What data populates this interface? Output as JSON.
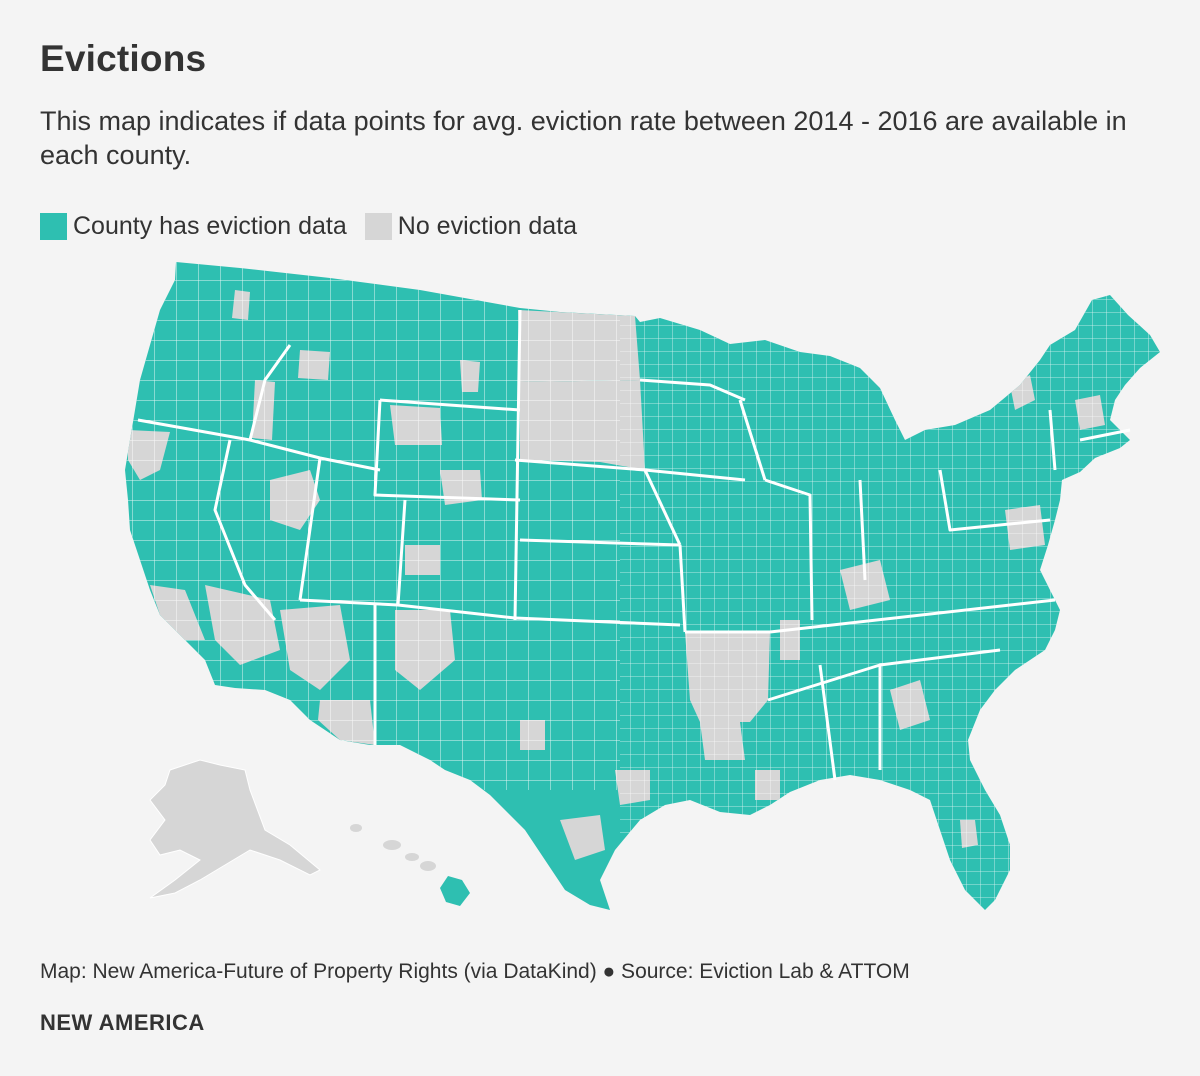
{
  "header": {
    "title": "Evictions",
    "subtitle": "This map indicates if data points for avg. eviction rate between 2014 - 2016 are available in each county."
  },
  "legend": {
    "has_data_label": "County has eviction data",
    "no_data_label": "No eviction data"
  },
  "colors": {
    "has_data": "#2ebfb1",
    "no_data": "#d6d6d6",
    "background": "#f4f4f4",
    "border": "#ffffff",
    "text": "#333333"
  },
  "map": {
    "regions": [
      {
        "name": "Alaska",
        "status": "no_data"
      },
      {
        "name": "Hawaii",
        "status": "mixed"
      },
      {
        "name": "North Dakota",
        "status": "no_data"
      },
      {
        "name": "South Dakota",
        "status": "no_data"
      },
      {
        "name": "Arkansas",
        "status": "no_data"
      }
    ]
  },
  "footer": {
    "credit": "Map: New America-Future of Property Rights (via DataKind) ● Source: Eviction Lab & ATTOM",
    "brand": "NEW AMERICA"
  }
}
